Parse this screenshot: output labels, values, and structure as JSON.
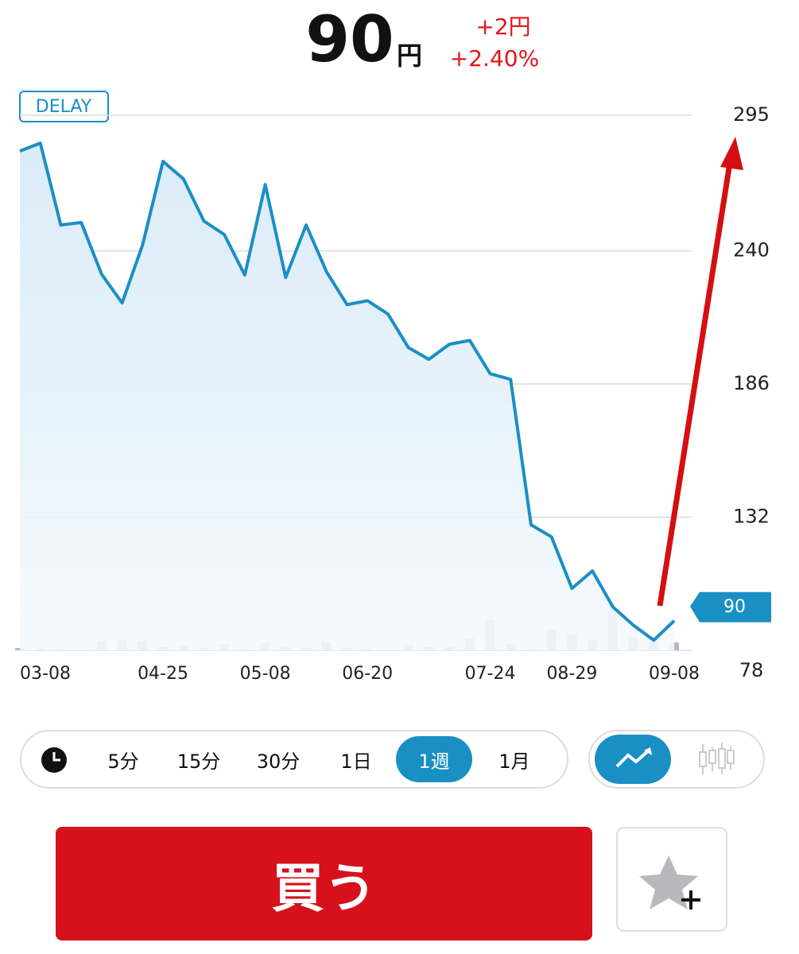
{
  "header": {
    "price": "90",
    "unit": "円",
    "change": "+2円",
    "change_pct": "+2.40%"
  },
  "delay_badge": "DELAY",
  "chart_data": {
    "type": "line",
    "categories": [
      null,
      "03-08",
      null,
      null,
      null,
      null,
      null,
      "04-25",
      null,
      null,
      null,
      null,
      "05-08",
      null,
      null,
      null,
      null,
      "06-20",
      null,
      null,
      null,
      null,
      null,
      "07-24",
      null,
      null,
      null,
      "08-29",
      null,
      null,
      null,
      null,
      "09-08"
    ],
    "series": [
      {
        "color": "#1a8fc4",
        "values": [
          280.5,
          283.7,
          250.5,
          251.5,
          230.5,
          218.9,
          242.4,
          276.3,
          269.2,
          252.1,
          246.6,
          230.2,
          266.9,
          229.2,
          250.5,
          231.5,
          218.2,
          219.8,
          214.4,
          200.8,
          196.0,
          202.1,
          203.7,
          190.2,
          187.9,
          128.9,
          124.0,
          103.1,
          110.2,
          95.6,
          88.2,
          82.1,
          90
        ]
      }
    ],
    "volume": {
      "color": "#b9b9c2",
      "values": [
        3,
        2,
        2,
        1,
        12,
        13,
        12,
        4,
        6,
        3,
        8,
        2,
        10,
        4,
        3,
        11,
        3,
        2,
        1,
        7,
        4,
        4,
        15,
        38,
        8,
        2,
        25,
        19,
        13,
        52,
        17,
        12,
        10
      ]
    },
    "current_label": "90",
    "ylim": [
      78,
      295
    ],
    "yticks": [
      78,
      132,
      186,
      240,
      295
    ],
    "grid": true
  },
  "intervals": [
    "5分",
    "15分",
    "30分",
    "1日",
    "1週",
    "1月"
  ],
  "active_interval": 4,
  "buy_button": "買う"
}
